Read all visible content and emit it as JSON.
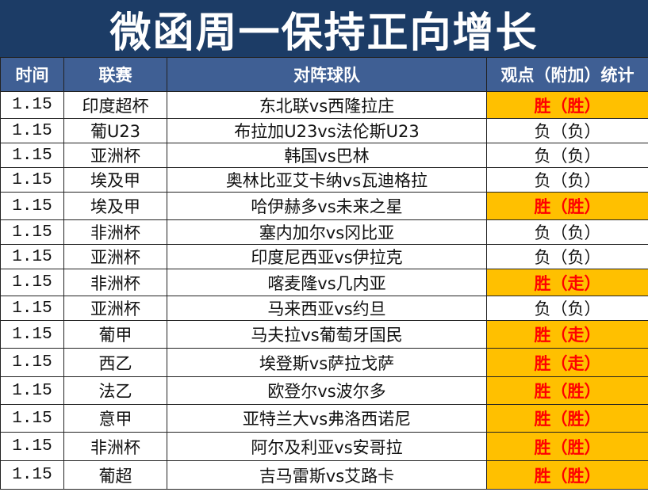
{
  "title": "微函周一保持正向增长",
  "headers": [
    "时间",
    "联赛",
    "对阵球队",
    "观点（附加）统计"
  ],
  "rows": [
    {
      "date": "1.15",
      "league": "印度超杯",
      "match": "东北联vs西隆拉庄",
      "result": "胜（胜）",
      "win": true
    },
    {
      "date": "1.15",
      "league": "葡U23",
      "match": "布拉加U23vs法伦斯U23",
      "result": "负（负）",
      "win": false
    },
    {
      "date": "1.15",
      "league": "亚洲杯",
      "match": "韩国vs巴林",
      "result": "负（负）",
      "win": false
    },
    {
      "date": "1.15",
      "league": "埃及甲",
      "match": "奥林比亚艾卡纳vs瓦迪格拉",
      "result": "负（负）",
      "win": false
    },
    {
      "date": "1.15",
      "league": "埃及甲",
      "match": "哈伊赫多vs未来之星",
      "result": "胜（胜）",
      "win": true
    },
    {
      "date": "1.15",
      "league": "非洲杯",
      "match": "塞内加尔vs冈比亚",
      "result": "负（负）",
      "win": false
    },
    {
      "date": "1.15",
      "league": "亚洲杯",
      "match": "印度尼西亚vs伊拉克",
      "result": "负（负）",
      "win": false
    },
    {
      "date": "1.15",
      "league": "非洲杯",
      "match": "喀麦隆vs几内亚",
      "result": "胜（走）",
      "win": true
    },
    {
      "date": "1.15",
      "league": "亚洲杯",
      "match": "马来西亚vs约旦",
      "result": "负（负）",
      "win": false
    },
    {
      "date": "1.15",
      "league": "葡甲",
      "match": "马夫拉vs葡萄牙国民",
      "result": "胜（走）",
      "win": true
    },
    {
      "date": "1.15",
      "league": "西乙",
      "match": "埃登斯vs萨拉戈萨",
      "result": "胜（走）",
      "win": true
    },
    {
      "date": "1.15",
      "league": "法乙",
      "match": "欧登尔vs波尔多",
      "result": "胜（胜）",
      "win": true
    },
    {
      "date": "1.15",
      "league": "意甲",
      "match": "亚特兰大vs弗洛西诺尼",
      "result": "胜（胜）",
      "win": true
    },
    {
      "date": "1.15",
      "league": "非洲杯",
      "match": "阿尔及利亚vs安哥拉",
      "result": "胜（胜）",
      "win": true
    },
    {
      "date": "1.15",
      "league": "葡超",
      "match": "吉马雷斯vs艾路卡",
      "result": "胜（胜）",
      "win": true
    }
  ],
  "colors": {
    "banner": "#1c3c66",
    "header": "#3f5f94",
    "win_bg": "#ffc000",
    "win_text": "#ff0000"
  }
}
